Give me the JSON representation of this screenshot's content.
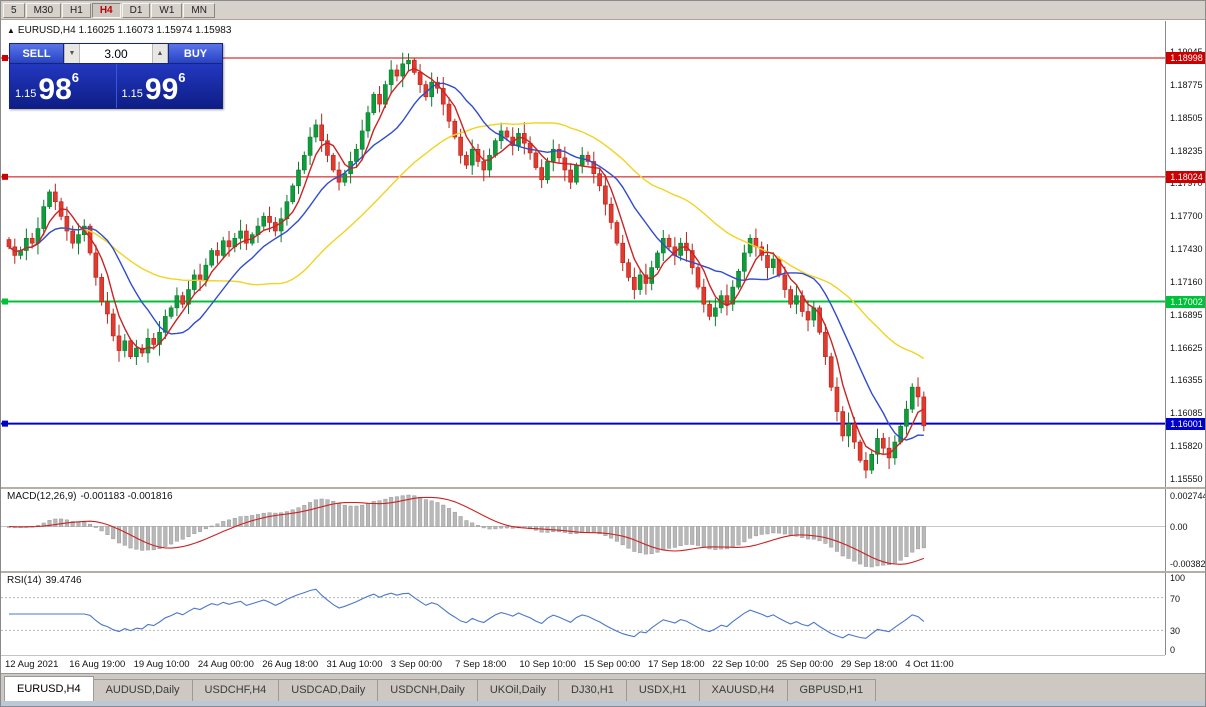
{
  "icons": {
    "collapse": "▲",
    "spin_up": "▲",
    "spin_down": "▼"
  },
  "toolbar": {
    "timeframes": [
      {
        "label": "5",
        "active": false
      },
      {
        "label": "M30",
        "active": false
      },
      {
        "label": "H1",
        "active": false
      },
      {
        "label": "H4",
        "active": true
      },
      {
        "label": "D1",
        "active": false
      },
      {
        "label": "W1",
        "active": false
      },
      {
        "label": "MN",
        "active": false
      }
    ]
  },
  "chart": {
    "header_text": "EURUSD,H4 1.16025 1.16073 1.15974 1.15983",
    "symbol_period": "EURUSD,H4",
    "ohlc": {
      "open": "1.16025",
      "high": "1.16073",
      "low": "1.15974",
      "close": "1.15983"
    }
  },
  "trade_panel": {
    "sell_label": "SELL",
    "buy_label": "BUY",
    "volume": "3.00",
    "sell_price_prefix": "1.15",
    "sell_price_big": "98",
    "sell_price_sup": "6",
    "buy_price_prefix": "1.15",
    "buy_price_big": "99",
    "buy_price_sup": "6"
  },
  "chart_data": {
    "type": "candlestick",
    "title": "EURUSD,H4",
    "closes": [
      1.1745,
      1.1738,
      1.1742,
      1.1752,
      1.1748,
      1.176,
      1.1778,
      1.179,
      1.1782,
      1.177,
      1.1758,
      1.1748,
      1.1755,
      1.1762,
      1.174,
      1.172,
      1.17,
      1.169,
      1.1672,
      1.166,
      1.1668,
      1.1655,
      1.1662,
      1.1658,
      1.167,
      1.1665,
      1.1675,
      1.1688,
      1.1695,
      1.1705,
      1.1698,
      1.171,
      1.1722,
      1.1718,
      1.173,
      1.1742,
      1.1738,
      1.175,
      1.1745,
      1.1752,
      1.1758,
      1.1748,
      1.1755,
      1.1762,
      1.177,
      1.1765,
      1.1758,
      1.1768,
      1.1782,
      1.1795,
      1.1808,
      1.182,
      1.1835,
      1.1845,
      1.1832,
      1.182,
      1.1808,
      1.1798,
      1.1805,
      1.1815,
      1.1825,
      1.184,
      1.1855,
      1.187,
      1.1862,
      1.1878,
      1.189,
      1.1885,
      1.1895,
      1.1898,
      1.1888,
      1.1878,
      1.1868,
      1.188,
      1.1875,
      1.1862,
      1.1848,
      1.1835,
      1.182,
      1.1812,
      1.1825,
      1.1815,
      1.1808,
      1.182,
      1.1832,
      1.184,
      1.1835,
      1.1828,
      1.1838,
      1.183,
      1.1822,
      1.181,
      1.18,
      1.1815,
      1.1825,
      1.1818,
      1.1808,
      1.1798,
      1.1812,
      1.182,
      1.1815,
      1.1805,
      1.1795,
      1.178,
      1.1765,
      1.1748,
      1.1732,
      1.172,
      1.171,
      1.1722,
      1.1715,
      1.1728,
      1.174,
      1.1752,
      1.1745,
      1.1738,
      1.1748,
      1.1742,
      1.1728,
      1.1712,
      1.1698,
      1.1688,
      1.1695,
      1.1705,
      1.1698,
      1.1712,
      1.1725,
      1.174,
      1.1752,
      1.1745,
      1.1738,
      1.1728,
      1.1735,
      1.1722,
      1.171,
      1.1698,
      1.1705,
      1.1692,
      1.1685,
      1.1695,
      1.1675,
      1.1655,
      1.163,
      1.161,
      1.159,
      1.16,
      1.1585,
      1.157,
      1.1562,
      1.1575,
      1.1588,
      1.158,
      1.1572,
      1.1585,
      1.1598,
      1.1612,
      1.163,
      1.1622,
      1.15983
    ],
    "x_labels": [
      "12 Aug 2021",
      "16 Aug 19:00",
      "19 Aug 10:00",
      "24 Aug 00:00",
      "26 Aug 18:00",
      "31 Aug 10:00",
      "3 Sep 00:00",
      "7 Sep 18:00",
      "10 Sep 10:00",
      "15 Sep 00:00",
      "17 Sep 18:00",
      "22 Sep 10:00",
      "25 Sep 00:00",
      "29 Sep 18:00",
      "4 Oct 11:00"
    ],
    "y_axis_ticks": [
      "1.19045",
      "1.18775",
      "1.18505",
      "1.18235",
      "1.17970",
      "1.17700",
      "1.17430",
      "1.17160",
      "1.16895",
      "1.16625",
      "1.16355",
      "1.16085",
      "1.15820",
      "1.15550"
    ],
    "moving_averages": [
      {
        "period": 34,
        "color": "#f2d320",
        "name": "slow-ma-yellow"
      },
      {
        "period": 13,
        "color": "#2f4bd0",
        "name": "medium-ma-blue"
      },
      {
        "period": 5,
        "color": "#cc2222",
        "name": "fast-ma-red"
      }
    ],
    "horizontal_lines": [
      {
        "price": 1.18998,
        "label": "1.18998",
        "color": "#cc0000",
        "width": 1
      },
      {
        "price": 1.18024,
        "label": "1.18024",
        "color": "#cc0000",
        "width": 1
      },
      {
        "price": 1.17002,
        "label": "1.17002",
        "color": "#00c238",
        "width": 2
      },
      {
        "price": 1.16001,
        "label": "1.16001",
        "color": "#0000cc",
        "width": 2
      }
    ],
    "up_color": "#0f9d3c",
    "down_color": "#e23a2e"
  },
  "indicators": {
    "macd": {
      "label": "MACD(12,26,9)",
      "values": "-0.001183 -0.001816",
      "axis_labels": [
        "0.002744",
        "0.00",
        "-0.003824"
      ],
      "histogram_color": "#b8b8b8",
      "signal_color": "#cc2222"
    },
    "rsi": {
      "label": "RSI(14)",
      "value": "39.4746",
      "axis_labels": [
        "100",
        "70",
        "30",
        "0"
      ],
      "levels": [
        70,
        30
      ],
      "line_color": "#4a78c8"
    }
  },
  "tabs": [
    {
      "label": "EURUSD,H4",
      "active": true
    },
    {
      "label": "AUDUSD,Daily",
      "active": false
    },
    {
      "label": "USDCHF,H4",
      "active": false
    },
    {
      "label": "USDCAD,Daily",
      "active": false
    },
    {
      "label": "USDCNH,Daily",
      "active": false
    },
    {
      "label": "UKOil,Daily",
      "active": false
    },
    {
      "label": "DJ30,H1",
      "active": false
    },
    {
      "label": "USDX,H1",
      "active": false
    },
    {
      "label": "XAUUSD,H4",
      "active": false
    },
    {
      "label": "GBPUSD,H1",
      "active": false
    }
  ]
}
